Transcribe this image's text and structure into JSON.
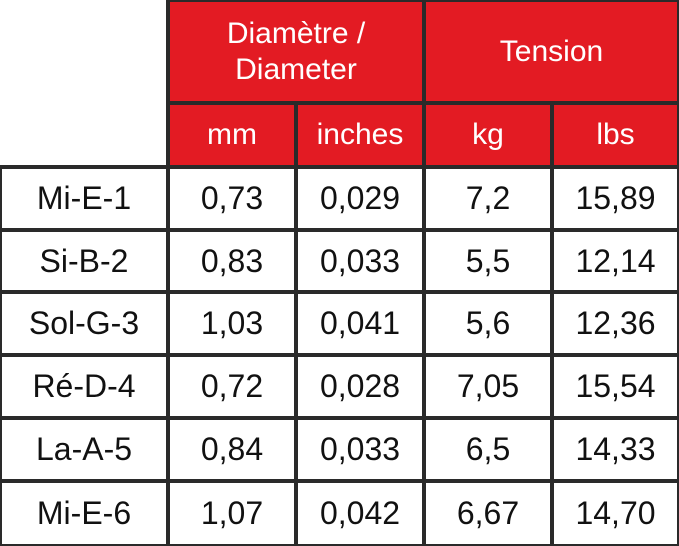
{
  "header": {
    "diameter": [
      "Diamètre /",
      "Diameter"
    ],
    "tension": "Tension",
    "units": [
      "mm",
      "inches",
      "kg",
      "lbs"
    ]
  },
  "table": {
    "rows": [
      [
        "Mi-E-1",
        "0,73",
        "0,029",
        "7,2",
        "15,89"
      ],
      [
        "Si-B-2",
        "0,83",
        "0,033",
        "5,5",
        "12,14"
      ],
      [
        "Sol-G-3",
        "1,03",
        "0,041",
        "5,6",
        "12,36"
      ],
      [
        "Ré-D-4",
        "0,72",
        "0,028",
        "7,05",
        "15,54"
      ],
      [
        "La-A-5",
        "0,84",
        "0,033",
        "6,5",
        "14,33"
      ],
      [
        "Mi-E-6",
        "1,07",
        "0,042",
        "6,67",
        "14,70"
      ]
    ]
  }
}
